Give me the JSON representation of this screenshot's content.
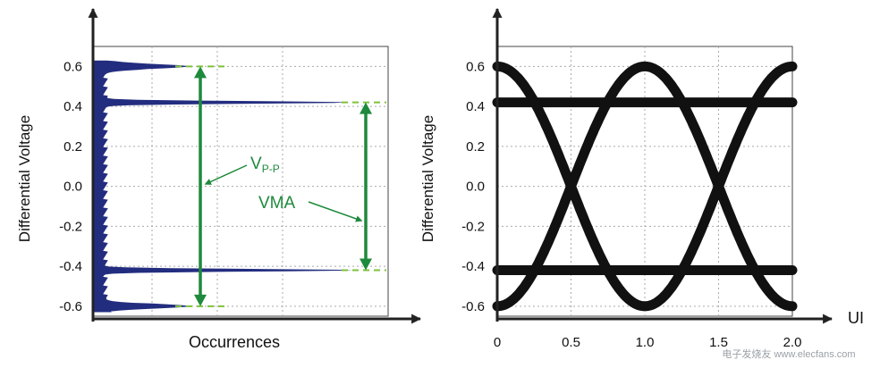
{
  "chart_data": [
    {
      "type": "histogram",
      "title": "",
      "orientation": "horizontal",
      "xlabel": "Occurrences",
      "ylabel": "Differential Voltage",
      "ylim": [
        -0.65,
        0.7
      ],
      "yticks": [
        "0.6",
        "0.4",
        "0.2",
        "0.0",
        "-0.2",
        "-0.4",
        "-0.6"
      ],
      "ytick_values": [
        0.6,
        0.4,
        0.2,
        0.0,
        -0.2,
        -0.4,
        -0.6
      ],
      "grid": true,
      "peaks": [
        {
          "voltage": 0.6,
          "relative_occurrences": 0.28
        },
        {
          "voltage": 0.42,
          "relative_occurrences": 0.85
        },
        {
          "voltage": -0.42,
          "relative_occurrences": 0.85
        },
        {
          "voltage": -0.6,
          "relative_occurrences": 0.28
        }
      ],
      "annotations": [
        {
          "label_main": "V",
          "label_sub": "P-P",
          "from": 0.6,
          "to": -0.6
        },
        {
          "label_main": "VMA",
          "label_sub": "",
          "from": 0.42,
          "to": -0.42
        }
      ],
      "series_color": "#232d7f",
      "annotation_color": "#1e8a3c",
      "level_marker_color": "#7ec23a"
    },
    {
      "type": "eye-diagram",
      "title": "",
      "xlabel": "UI",
      "ylabel": "Differential Voltage",
      "xlim": [
        0,
        2.0
      ],
      "ylim": [
        -0.65,
        0.7
      ],
      "xticks": [
        "0",
        "0.5",
        "1.0",
        "1.5",
        "2.0"
      ],
      "xtick_values": [
        0,
        0.5,
        1.0,
        1.5,
        2.0
      ],
      "yticks": [
        "0.6",
        "0.4",
        "0.2",
        "0.0",
        "-0.2",
        "-0.4",
        "-0.6"
      ],
      "ytick_values": [
        0.6,
        0.4,
        0.2,
        0.0,
        -0.2,
        -0.4,
        -0.6
      ],
      "grid": true,
      "levels": {
        "peak": 0.6,
        "steady": 0.42
      },
      "crossings_ui": [
        0.5,
        1.5
      ],
      "trace_color": "#111111"
    }
  ],
  "watermark": "电子发烧友 www.elecfans.com"
}
